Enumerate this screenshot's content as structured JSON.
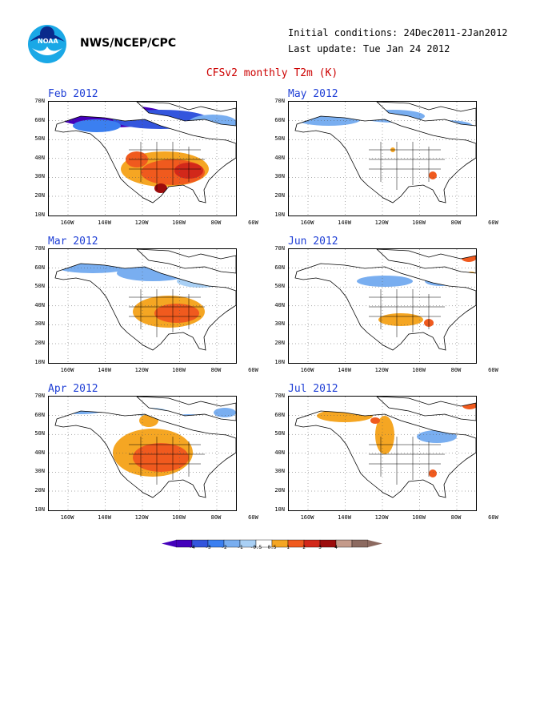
{
  "header": {
    "agency": "NWS/NCEP/CPC",
    "initial_conditions": "Initial conditions: 24Dec2011-2Jan2012",
    "last_update": "Last update: Tue Jan 24 2012",
    "title": "CFSv2 monthly T2m (K)"
  },
  "logo": {
    "text": "NOAA"
  },
  "axes": {
    "y_ticks": [
      "70N",
      "60N",
      "50N",
      "40N",
      "30N",
      "20N",
      "10N"
    ],
    "x_ticks": [
      "160W",
      "140W",
      "120W",
      "100W",
      "80W",
      "60W"
    ]
  },
  "panels": [
    {
      "title": "Feb 2012",
      "pattern": "north-cold-south-warm"
    },
    {
      "title": "May 2012",
      "pattern": "north-cool"
    },
    {
      "title": "Mar 2012",
      "pattern": "north-cool-east-warm"
    },
    {
      "title": "Jun 2012",
      "pattern": "mixed-weak"
    },
    {
      "title": "Apr 2012",
      "pattern": "central-warm"
    },
    {
      "title": "Jul 2012",
      "pattern": "west-warm"
    }
  ],
  "colorbar": {
    "labels": [
      "-4",
      "-3",
      "-2",
      "-1",
      "-0.5",
      "0.5",
      "1",
      "2",
      "3",
      "4"
    ],
    "colors": [
      "#4400bb",
      "#3355dd",
      "#3b7ff0",
      "#79aef0",
      "#a9d0f5",
      "#ffffff",
      "#f5a623",
      "#f05a1e",
      "#d2281a",
      "#9c0c0c",
      "#c49a8a",
      "#8c6a60"
    ]
  }
}
